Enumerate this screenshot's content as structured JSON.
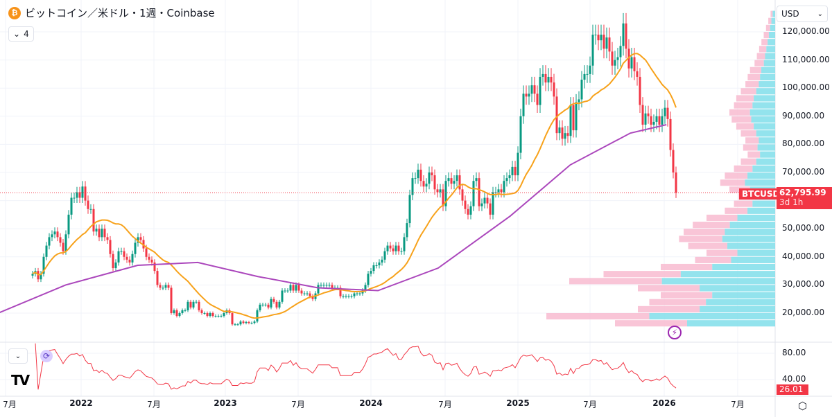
{
  "header": {
    "title": "ビットコイン／米ドル・1週・Coinbase",
    "coin_icon": "bitcoin-icon",
    "indicator_count": "4",
    "currency": "USD"
  },
  "price_tag": {
    "symbol": "BTCUSD",
    "price": "62,795.99",
    "countdown": "3d 1h"
  },
  "rsi_tag": "26.01",
  "colors": {
    "up": "#089981",
    "down": "#f23645",
    "ma_fast": "#f7a21b",
    "ma_slow": "#ab47bc",
    "rsi": "#f23645",
    "profile_up": "#80deea",
    "profile_down": "#f8bbd0"
  },
  "chart_data": [
    {
      "type": "candlestick",
      "interval": "1週",
      "close_last": 62795.99,
      "closes": [
        34000,
        35000,
        32000,
        34000,
        40000,
        44000,
        47000,
        48000,
        49000,
        47000,
        45000,
        42000,
        48000,
        55000,
        61000,
        61000,
        63000,
        61000,
        65000,
        60000,
        57000,
        57000,
        49000,
        50000,
        47000,
        50000,
        47000,
        46000,
        41000,
        36000,
        38000,
        42000,
        42000,
        40000,
        39000,
        38000,
        41000,
        45000,
        47000,
        46000,
        43000,
        40000,
        39000,
        38000,
        35000,
        30000,
        29000,
        29000,
        30000,
        29000,
        20000,
        21000,
        19000,
        20000,
        21000,
        21000,
        24000,
        22000,
        24000,
        24000,
        21000,
        20000,
        20000,
        19000,
        20000,
        19000,
        19000,
        19000,
        19000,
        20000,
        21000,
        20000,
        16000,
        16000,
        16000,
        17000,
        16500,
        16800,
        16500,
        16500,
        17000,
        21000,
        23000,
        23000,
        23000,
        22000,
        25000,
        24000,
        22000,
        24000,
        28000,
        28000,
        28000,
        30000,
        28000,
        30000,
        28000,
        27000,
        27000,
        27000,
        26000,
        25000,
        27000,
        30000,
        30000,
        30000,
        30000,
        30000,
        29000,
        29000,
        29000,
        26000,
        26000,
        26000,
        26000,
        26000,
        27000,
        27000,
        27000,
        28000,
        30000,
        34000,
        35000,
        37000,
        37000,
        38000,
        39000,
        42000,
        44000,
        43000,
        42000,
        44000,
        42000,
        42000,
        47000,
        52000,
        62000,
        68000,
        68000,
        71000,
        67000,
        65000,
        66000,
        70000,
        69000,
        64000,
        63000,
        64000,
        58000,
        67000,
        68000,
        66000,
        67000,
        69000,
        64000,
        60000,
        57000,
        55000,
        58000,
        67000,
        68000,
        58000,
        59000,
        61000,
        59000,
        55000,
        63000,
        63000,
        64000,
        63000,
        67000,
        68000,
        69000,
        72000,
        69000,
        77000,
        90000,
        98000,
        97000,
        98000,
        101000,
        98000,
        94000,
        104000,
        105000,
        102000,
        104000,
        102000,
        97000,
        84000,
        86000,
        82000,
        84000,
        83000,
        94000,
        85000,
        95000,
        96000,
        103000,
        105000,
        105000,
        108000,
        119000,
        119000,
        117000,
        119000,
        114000,
        118000,
        113000,
        108000,
        110000,
        111000,
        115000,
        123000,
        114000,
        107000,
        111000,
        106000,
        104000,
        94000,
        87000,
        91000,
        90000,
        87000,
        88000,
        90000,
        87000,
        90000,
        93000,
        89000,
        78000,
        70000,
        62795.99
      ],
      "ma_fast": {
        "type": "SMA",
        "length": 20
      },
      "ma_slow_points": [
        [
          "2021-06",
          19300
        ],
        [
          "2021-12",
          30000
        ],
        [
          "2022-06",
          37000
        ],
        [
          "2022-11",
          38000
        ],
        [
          "2023-04",
          33000
        ],
        [
          "2023-09",
          29000
        ],
        [
          "2024-02",
          28000
        ],
        [
          "2024-07",
          36000
        ],
        [
          "2025-01",
          54500
        ],
        [
          "2025-06",
          72700
        ],
        [
          "2025-11",
          84000
        ],
        [
          "2026-02",
          87000
        ]
      ],
      "y_axis": {
        "ticks": [
          120000,
          110000,
          100000,
          90000,
          80000,
          70000,
          50000,
          40000,
          30000,
          20000
        ],
        "tick_labels": [
          "120,000.00",
          "110,000.00",
          "100,000.00",
          "90,000.00",
          "80,000.00",
          "70,000.00",
          "50,000.00",
          "40,000.00",
          "30,000.00",
          "20,000.00"
        ]
      },
      "x_axis": {
        "tick_labels": [
          "7月",
          "2022",
          "7月",
          "2023",
          "7月",
          "2024",
          "7月",
          "2025",
          "7月",
          "2026",
          "7月"
        ]
      },
      "volume_profile": {
        "bucket_start": 15000,
        "bucket_size": 2500,
        "relative_volume": [
          0.7,
          1.0,
          0.6,
          0.55,
          0.5,
          0.6,
          0.9,
          0.75,
          0.5,
          0.35,
          0.3,
          0.38,
          0.42,
          0.4,
          0.36,
          0.3,
          0.22,
          0.18,
          0.16,
          0.2,
          0.24,
          0.22,
          0.18,
          0.15,
          0.12,
          0.14,
          0.13,
          0.15,
          0.17,
          0.19,
          0.2,
          0.18,
          0.17,
          0.15,
          0.13,
          0.12,
          0.11,
          0.09,
          0.08,
          0.07,
          0.06,
          0.05,
          0.04,
          0.03,
          0.02
        ],
        "up_share": 0.55
      },
      "rsi": {
        "length": 14,
        "ticks": [
          80,
          40
        ],
        "tick_labels": [
          "80.00",
          "40.00"
        ],
        "range": [
          10,
          95
        ]
      }
    }
  ]
}
